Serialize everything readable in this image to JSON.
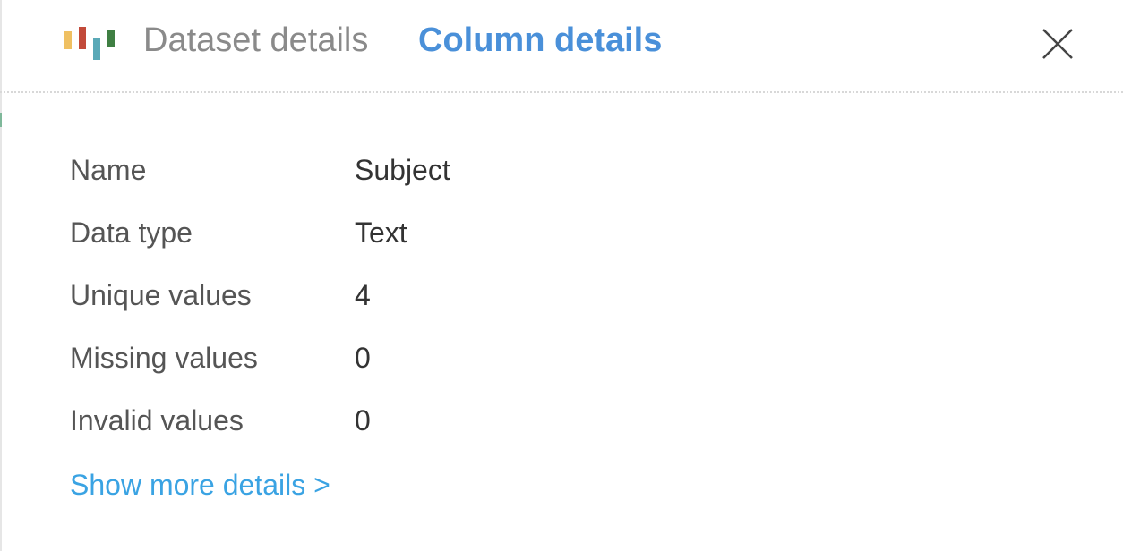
{
  "header": {
    "logo_colors": [
      "#efc062",
      "#c24a3a",
      "#5aa9b7",
      "#3f7f43"
    ],
    "tabs": [
      {
        "label": "Dataset details",
        "active": false
      },
      {
        "label": "Column details",
        "active": true
      }
    ],
    "close_icon": "close-icon"
  },
  "details": [
    {
      "label": "Name",
      "value": "Subject"
    },
    {
      "label": "Data type",
      "value": "Text"
    },
    {
      "label": "Unique values",
      "value": "4"
    },
    {
      "label": "Missing values",
      "value": "0"
    },
    {
      "label": "Invalid values",
      "value": "0"
    }
  ],
  "show_more": "Show more details >",
  "colors": {
    "accent": "#4a90d9",
    "link": "#3aa3e3"
  }
}
